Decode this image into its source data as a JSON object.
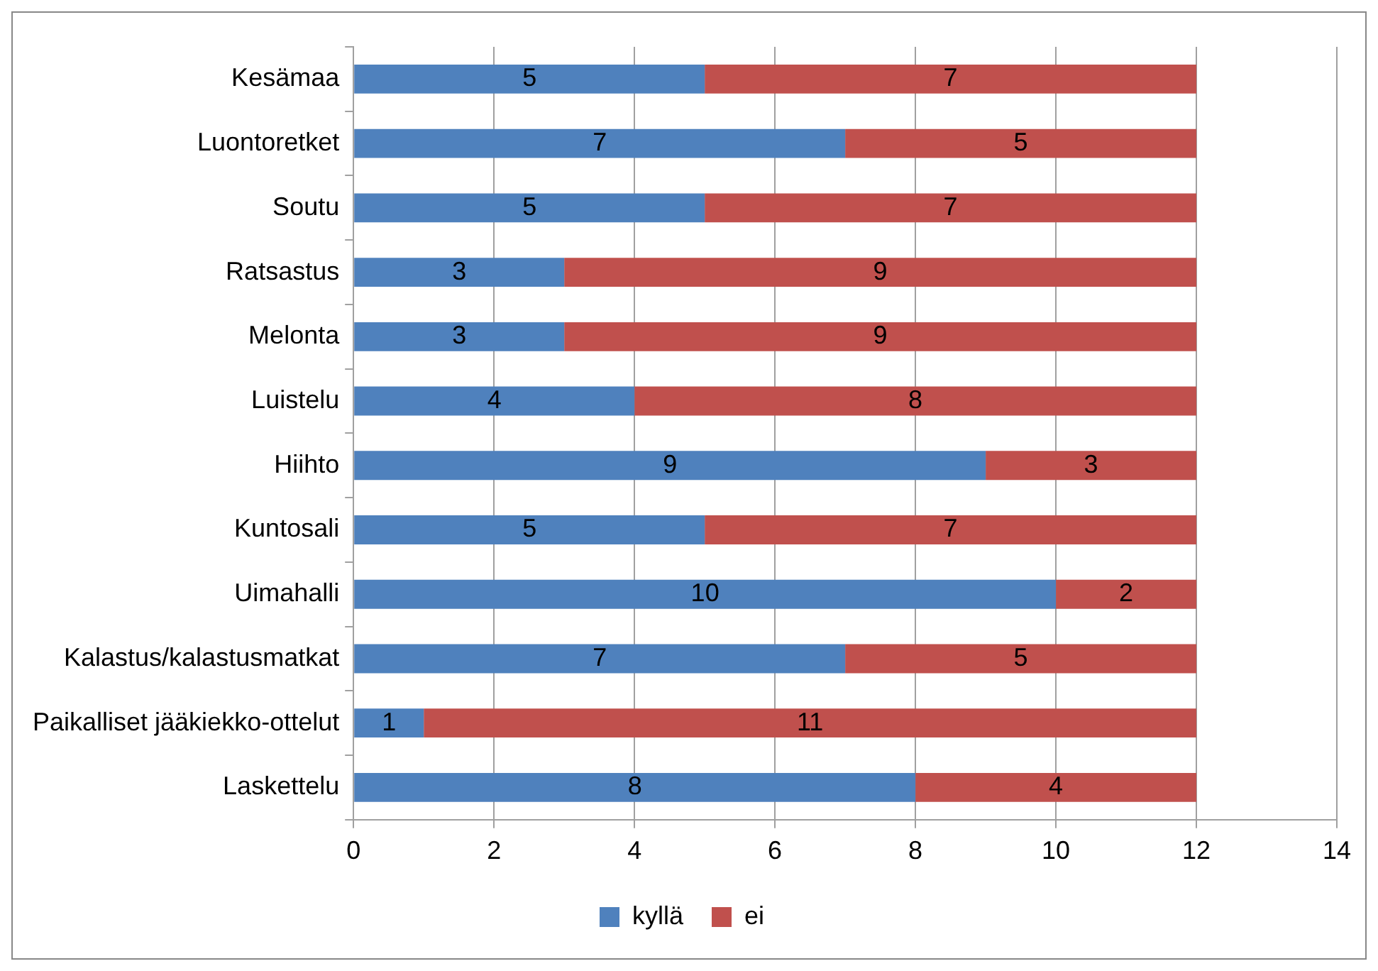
{
  "chart_data": {
    "type": "bar",
    "orientation": "horizontal",
    "stacked": true,
    "categories": [
      "Kesämaa",
      "Luontoretket",
      "Soutu",
      "Ratsastus",
      "Melonta",
      "Luistelu",
      "Hiihto",
      "Kuntosali",
      "Uimahalli",
      "Kalastus/kalastusmatkat",
      "Paikalliset jääkiekko-ottelut",
      "Laskettelu"
    ],
    "series": [
      {
        "name": "kyllä",
        "color": "#4f81bd",
        "values": [
          5,
          7,
          5,
          3,
          3,
          4,
          9,
          5,
          10,
          7,
          1,
          8
        ]
      },
      {
        "name": "ei",
        "color": "#c0504d",
        "values": [
          7,
          5,
          7,
          9,
          9,
          8,
          3,
          7,
          2,
          5,
          11,
          4
        ]
      }
    ],
    "xlim": [
      0,
      14
    ],
    "xticks": [
      0,
      2,
      4,
      6,
      8,
      10,
      12,
      14
    ],
    "grid": "x",
    "legend": "bottom",
    "data_labels": true
  }
}
